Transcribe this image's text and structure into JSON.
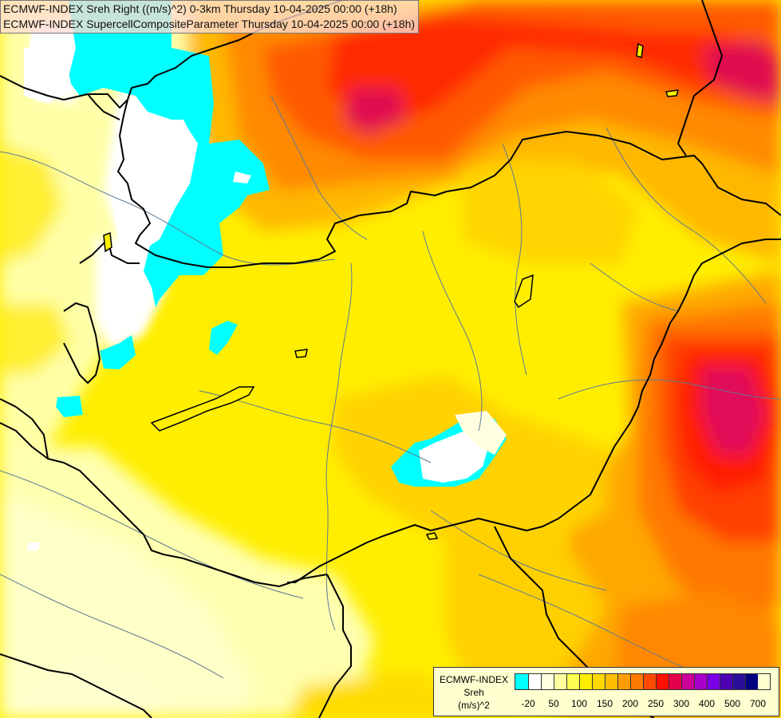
{
  "header": {
    "title_line_1": "ECMWF-INDEX Sreh Right ((m/s)^2) 0-3km Thursday 10-04-2025 00:00 (+18h)",
    "title_line_2": "ECMWF-INDEX SupercellCompositeParameter Thursday 10-04-2025 00:00 (+18h)"
  },
  "legend": {
    "label_line_1": "ECMWF-INDEX",
    "label_line_2": "Sreh",
    "label_line_3": "(m/s)^2",
    "swatch_colors": [
      "#00ffff",
      "#ffffff",
      "#ffffe0",
      "#ffffa0",
      "#ffff50",
      "#ffee00",
      "#ffd700",
      "#ffbf00",
      "#ff9d00",
      "#ff7a00",
      "#ff4a00",
      "#ff1000",
      "#e4004a",
      "#cc0099",
      "#a800c8",
      "#7b00e6",
      "#4b00b4",
      "#2a1098",
      "#000080"
    ],
    "ticks": [
      {
        "label": "-20",
        "index": 1
      },
      {
        "label": "50",
        "index": 3
      },
      {
        "label": "100",
        "index": 5
      },
      {
        "label": "150",
        "index": 7
      },
      {
        "label": "200",
        "index": 9
      },
      {
        "label": "250",
        "index": 11
      },
      {
        "label": "300",
        "index": 13
      },
      {
        "label": "400",
        "index": 15
      },
      {
        "label": "500",
        "index": 17
      },
      {
        "label": "700",
        "index": 19
      }
    ]
  },
  "map_colors": {
    "pale_yellow": "#ffffb5",
    "light_yellow": "#ffff80",
    "yellow": "#ffee00",
    "gold": "#ffd000",
    "orange": "#ffa000",
    "dark_orange": "#ff7000",
    "red": "#ff2000",
    "magenta": "#e0105a",
    "cyan": "#00ffff",
    "white": "#ffffff",
    "border": "#000000",
    "river": "#5d7a93"
  }
}
